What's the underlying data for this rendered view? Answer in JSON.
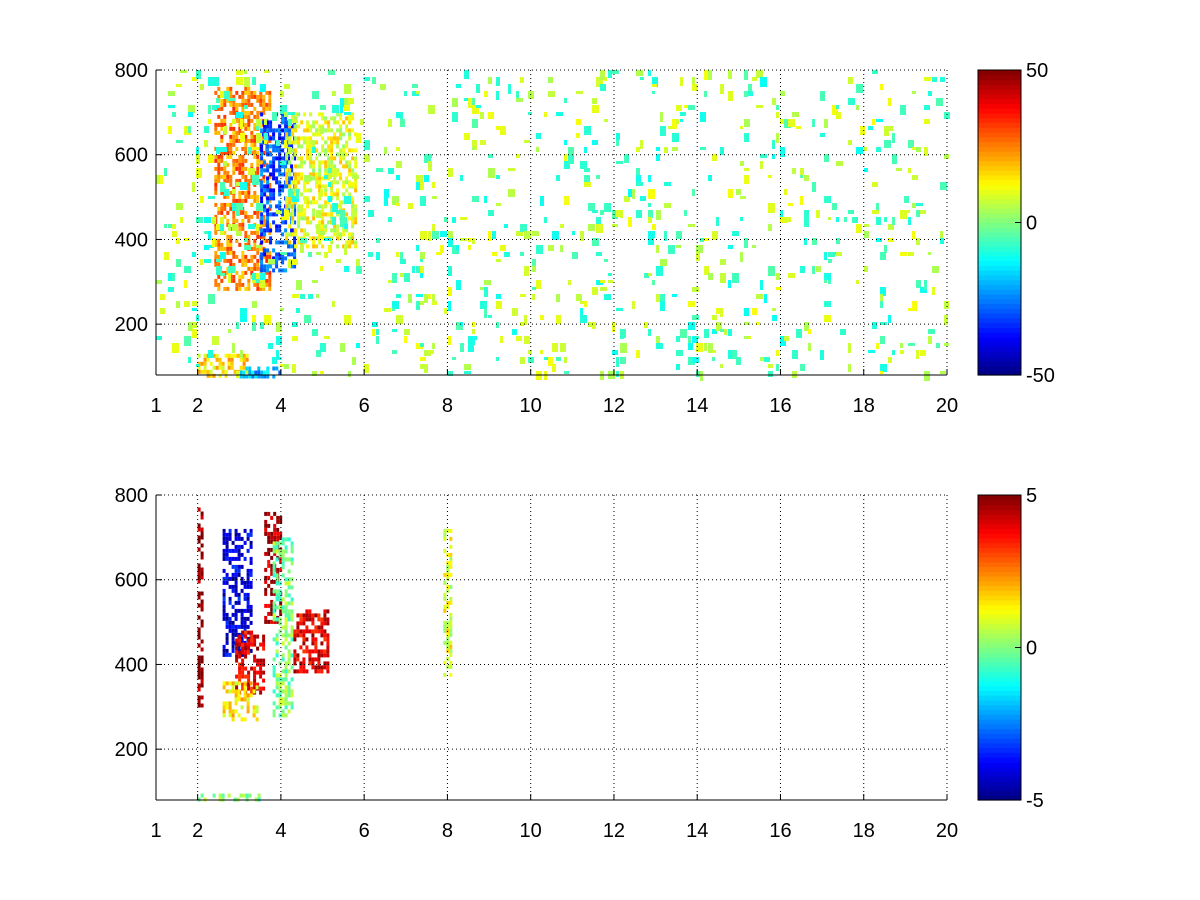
{
  "chart_data": [
    {
      "type": "heatmap",
      "title": "",
      "xlabel": "",
      "ylabel": "",
      "xlim": [
        1,
        20
      ],
      "ylim": [
        80,
        800
      ],
      "x_ticks": [
        1,
        2,
        4,
        6,
        8,
        10,
        12,
        14,
        16,
        18,
        20
      ],
      "y_ticks": [
        200,
        400,
        600,
        800
      ],
      "grid": true,
      "colormap": "jet",
      "colorbar": {
        "min": -50,
        "max": 50,
        "ticks": [
          50,
          0,
          -50
        ]
      },
      "features": [
        {
          "x_range": [
            2.4,
            3.7
          ],
          "y_range": [
            280,
            760
          ],
          "value": 25
        },
        {
          "x_range": [
            3.5,
            4.3
          ],
          "y_range": [
            330,
            700
          ],
          "value": -30
        },
        {
          "x_range": [
            4.1,
            5.8
          ],
          "y_range": [
            380,
            700
          ],
          "value": 10
        },
        {
          "x_range": [
            2.0,
            3.2
          ],
          "y_range": [
            80,
            130
          ],
          "value": 15
        },
        {
          "x_range": [
            3.0,
            4.0
          ],
          "y_range": [
            80,
            100
          ],
          "value": -20
        },
        {
          "x_range": [
            1.0,
            20.0
          ],
          "y_range": [
            80,
            800
          ],
          "value": 5,
          "pattern": "sparse noise"
        }
      ]
    },
    {
      "type": "heatmap",
      "title": "",
      "xlabel": "",
      "ylabel": "",
      "xlim": [
        1,
        20
      ],
      "ylim": [
        80,
        800
      ],
      "x_ticks": [
        1,
        2,
        4,
        6,
        8,
        10,
        12,
        14,
        16,
        18,
        20
      ],
      "y_ticks": [
        200,
        400,
        600,
        800
      ],
      "grid": true,
      "colormap": "jet",
      "colorbar": {
        "min": -5,
        "max": 5,
        "ticks": [
          5,
          0,
          -5
        ]
      },
      "features": [
        {
          "x_range": [
            2.6,
            3.3
          ],
          "y_range": [
            420,
            720
          ],
          "value": -4
        },
        {
          "x_range": [
            2.9,
            3.6
          ],
          "y_range": [
            330,
            480
          ],
          "value": 4
        },
        {
          "x_range": [
            2.6,
            3.4
          ],
          "y_range": [
            270,
            360
          ],
          "value": 1.5
        },
        {
          "x_range": [
            3.6,
            4.0
          ],
          "y_range": [
            500,
            760
          ],
          "value": 4.5
        },
        {
          "x_range": [
            3.8,
            4.3
          ],
          "y_range": [
            280,
            700
          ],
          "value": 0
        },
        {
          "x_range": [
            4.3,
            5.1
          ],
          "y_range": [
            380,
            530
          ],
          "value": 4
        },
        {
          "x_range": [
            7.9,
            8.1
          ],
          "y_range": [
            380,
            720
          ],
          "value": 1
        },
        {
          "x_range": [
            2.0,
            2.1
          ],
          "y_range": [
            300,
            780
          ],
          "value": 5
        },
        {
          "x_range": [
            2.0,
            3.5
          ],
          "y_range": [
            80,
            95
          ],
          "value": 0
        }
      ]
    }
  ]
}
